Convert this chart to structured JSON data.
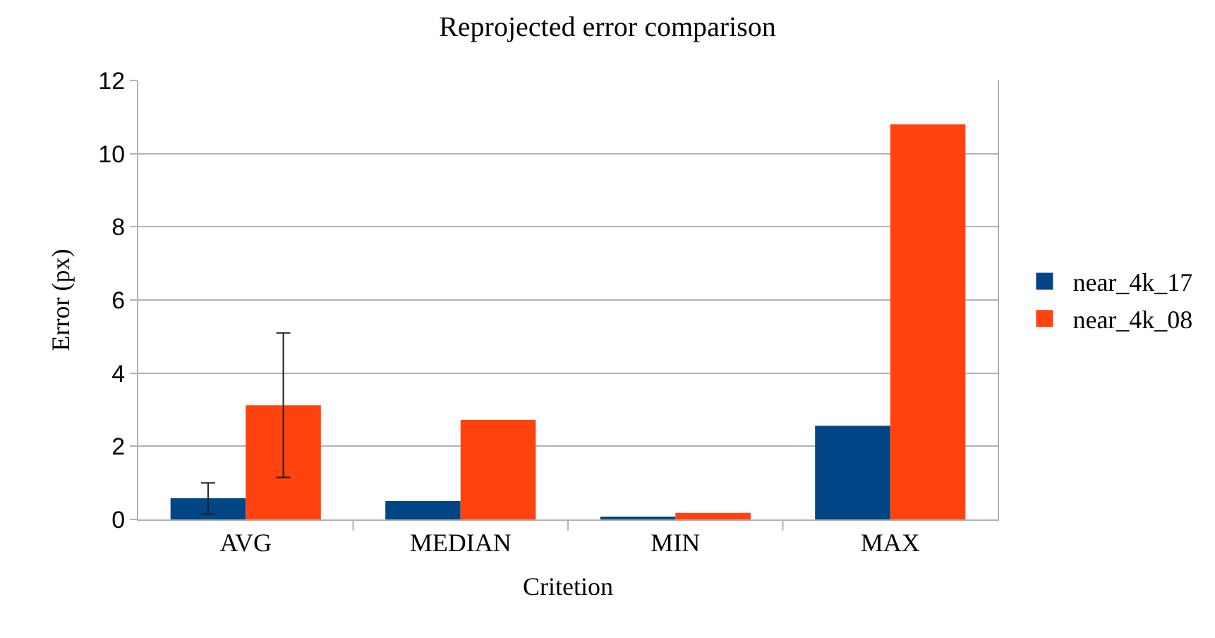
{
  "chart_data": {
    "type": "bar",
    "title": "Reprojected error comparison",
    "xlabel": "Critetion",
    "ylabel": "Error (px)",
    "categories": [
      "AVG",
      "MEDIAN",
      "MIN",
      "MAX"
    ],
    "series": [
      {
        "name": "near_4k_17",
        "color": "#004586",
        "values": [
          0.58,
          0.5,
          0.06,
          2.56
        ],
        "errors": [
          [
            0.15,
            1.0
          ],
          null,
          null,
          null
        ]
      },
      {
        "name": "near_4k_08",
        "color": "#ff420e",
        "values": [
          3.12,
          2.72,
          0.18,
          10.8
        ],
        "errors": [
          [
            1.15,
            5.1
          ],
          null,
          null,
          null
        ]
      }
    ],
    "ylim": [
      0,
      12
    ],
    "yticks": [
      0,
      2,
      4,
      6,
      8,
      10,
      12
    ],
    "grid": "y",
    "legend": "right"
  }
}
